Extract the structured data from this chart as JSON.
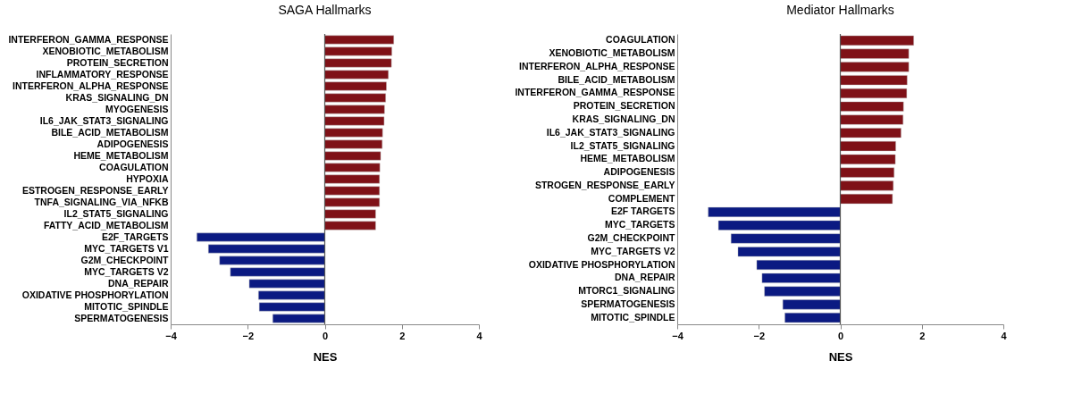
{
  "chart_data": [
    {
      "type": "bar",
      "orientation": "horizontal",
      "title": "SAGA Hallmarks",
      "xlabel": "NES",
      "categories": [
        "INTERFERON_GAMMA_RESPONSE",
        "XENOBIOTIC_METABOLISM",
        "PROTEIN_SECRETION",
        "INFLAMMATORY_RESPONSE",
        "INTERFERON_ALPHA_RESPONSE",
        "KRAS_SIGNALING_DN",
        "MYOGENESIS",
        "IL6_JAK_STAT3_SIGNALING",
        "BILE_ACID_METABOLISM",
        "ADIPOGENESIS",
        "HEME_METABOLISM",
        "COAGULATION",
        "HYPOXIA",
        "ESTROGEN_RESPONSE_EARLY",
        "TNFA_SIGNALING_VIA_NFKB",
        "IL2_STAT5_SIGNALING",
        "FATTY_ACID_METABOLISM",
        "E2F_TARGETS",
        "MYC_TARGETS V1",
        "G2M_CHECKPOINT",
        "MYC_TARGETS V2",
        "DNA_REPAIR",
        "OXIDATIVE PHOSPHORYLATION",
        "MITOTIC_SPINDLE",
        "SPERMATOGENESIS"
      ],
      "values": [
        1.79,
        1.74,
        1.73,
        1.65,
        1.6,
        1.58,
        1.55,
        1.54,
        1.5,
        1.49,
        1.45,
        1.43,
        1.42,
        1.42,
        1.42,
        1.32,
        1.32,
        -3.32,
        -3.02,
        -2.73,
        -2.45,
        -1.96,
        -1.72,
        -1.7,
        -1.35
      ],
      "colors": [
        "#7f1117",
        "#7f1117",
        "#7f1117",
        "#7f1117",
        "#7f1117",
        "#7f1117",
        "#7f1117",
        "#7f1117",
        "#7f1117",
        "#7f1117",
        "#7f1117",
        "#7f1117",
        "#7f1117",
        "#7f1117",
        "#7f1117",
        "#7f1117",
        "#7f1117",
        "#0b1a82",
        "#0b1a82",
        "#0b1a82",
        "#0b1a82",
        "#0b1a82",
        "#0b1a82",
        "#0b1a82",
        "#0b1a82"
      ],
      "xlim": [
        -4,
        4
      ],
      "xticks": [
        -4,
        -2,
        0,
        2,
        4
      ],
      "ref_lines": [
        {
          "axis": "x",
          "value": 0
        }
      ]
    },
    {
      "type": "bar",
      "orientation": "horizontal",
      "title": "Mediator Hallmarks",
      "xlabel": "NES",
      "categories": [
        "COAGULATION",
        "XENOBIOTIC_METABOLISM",
        "INTERFERON_ALPHA_RESPONSE",
        "BILE_ACID_METABOLISM",
        "INTERFERON_GAMMA_RESPONSE",
        "PROTEIN_SECRETION",
        "KRAS_SIGNALING_DN",
        "IL6_JAK_STAT3_SIGNALING",
        "IL2_STAT5_SIGNALING",
        "HEME_METABOLISM",
        "ADIPOGENESIS",
        "STROGEN_RESPONSE_EARLY",
        "COMPLEMENT",
        "E2F TARGETS",
        "MYC_TARGETS",
        "G2M_CHECKPOINT",
        "MYC_TARGETS V2",
        "OXIDATIVE PHOSPHORYLATION",
        "DNA_REPAIR",
        "MTORC1_SIGNALING",
        "SPERMATOGENESIS",
        "MITOTIC_SPINDLE"
      ],
      "values": [
        1.8,
        1.68,
        1.68,
        1.64,
        1.63,
        1.55,
        1.54,
        1.49,
        1.36,
        1.35,
        1.32,
        1.3,
        1.28,
        -3.24,
        -2.99,
        -2.68,
        -2.51,
        -2.05,
        -1.92,
        -1.86,
        -1.41,
        -1.36
      ],
      "colors": [
        "#7f1117",
        "#7f1117",
        "#7f1117",
        "#7f1117",
        "#7f1117",
        "#7f1117",
        "#7f1117",
        "#7f1117",
        "#7f1117",
        "#7f1117",
        "#7f1117",
        "#7f1117",
        "#7f1117",
        "#0b1a82",
        "#0b1a82",
        "#0b1a82",
        "#0b1a82",
        "#0b1a82",
        "#0b1a82",
        "#0b1a82",
        "#0b1a82",
        "#0b1a82"
      ],
      "xlim": [
        -4,
        4
      ],
      "xticks": [
        -4,
        -2,
        0,
        2,
        4
      ],
      "ref_lines": [
        {
          "axis": "x",
          "value": 0
        }
      ]
    }
  ]
}
